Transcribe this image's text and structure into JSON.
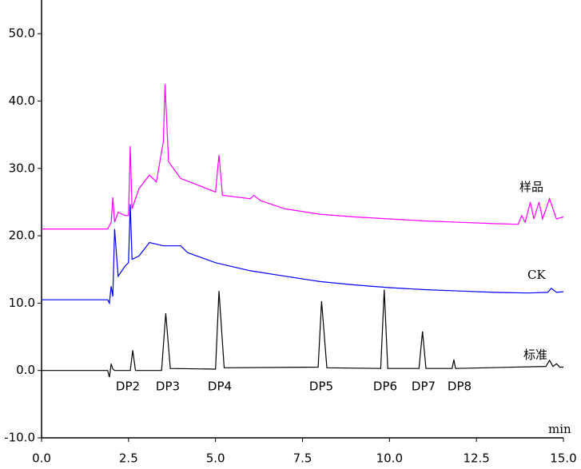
{
  "chart_data": {
    "type": "line",
    "x_label": "min",
    "xlim": [
      0,
      15
    ],
    "xticks": [
      {
        "value": 0,
        "label": "0.0"
      },
      {
        "value": 2.5,
        "label": "2.5"
      },
      {
        "value": 5,
        "label": "5.0"
      },
      {
        "value": 7.5,
        "label": "7.5"
      },
      {
        "value": 10,
        "label": "10.0"
      },
      {
        "value": 12.5,
        "label": "12.5"
      },
      {
        "value": 15,
        "label": "15.0"
      }
    ],
    "ylim": [
      -10,
      55
    ],
    "yticks": [
      {
        "value": -10,
        "label": "-10.0"
      },
      {
        "value": 0,
        "label": "0.0"
      },
      {
        "value": 10,
        "label": "10.0"
      },
      {
        "value": 20,
        "label": "20.0"
      },
      {
        "value": 30,
        "label": "30.0"
      },
      {
        "value": 40,
        "label": "40.0"
      },
      {
        "value": 50,
        "label": "50.0"
      }
    ],
    "grid": false,
    "annotations": [
      "DP2",
      "DP3",
      "DP4",
      "DP5",
      "DP6",
      "DP7",
      "DP8"
    ],
    "series": [
      {
        "name": "样品",
        "color": "#ff00ff",
        "x": [
          0,
          1.9,
          2.0,
          2.05,
          2.1,
          2.2,
          2.4,
          2.5,
          2.55,
          2.6,
          2.8,
          3.1,
          3.3,
          3.5,
          3.55,
          3.65,
          4.0,
          4.5,
          5.0,
          5.1,
          5.2,
          6.0,
          6.1,
          6.3,
          7,
          8,
          9,
          10,
          11,
          12,
          13,
          13.7,
          13.8,
          13.9,
          14.05,
          14.15,
          14.3,
          14.4,
          14.6,
          14.8,
          15
        ],
        "values": [
          21,
          21,
          22,
          25.7,
          22,
          23.5,
          23,
          23,
          33.3,
          24,
          27,
          29,
          28,
          34,
          42.5,
          31,
          28.5,
          27.5,
          26.5,
          32,
          26,
          25.5,
          26,
          25.2,
          24,
          23.2,
          22.8,
          22.5,
          22.2,
          22,
          21.8,
          21.7,
          23,
          22,
          25,
          22.5,
          25,
          22.5,
          25.5,
          22.5,
          22.8
        ]
      },
      {
        "name": "CK",
        "color": "#0000ff",
        "x": [
          0,
          1.9,
          1.95,
          2.0,
          2.05,
          2.1,
          2.2,
          2.4,
          2.5,
          2.55,
          2.6,
          2.8,
          3.1,
          3.5,
          4.0,
          4.2,
          5,
          6,
          7,
          8,
          9,
          10,
          11,
          12,
          13,
          14,
          14.55,
          14.65,
          14.8,
          15
        ],
        "values": [
          10.5,
          10.5,
          10,
          12.5,
          11,
          21,
          14,
          15.5,
          16,
          24.7,
          16.5,
          17,
          19,
          18.5,
          18.5,
          17.5,
          16,
          14.8,
          14,
          13.2,
          12.7,
          12.3,
          12,
          11.8,
          11.6,
          11.5,
          11.6,
          12.2,
          11.6,
          11.7
        ]
      },
      {
        "name": "标准",
        "color": "#000000",
        "x": [
          0,
          1.9,
          1.95,
          2.0,
          2.05,
          2.1,
          2.55,
          2.62,
          2.7,
          3.45,
          3.57,
          3.7,
          5.0,
          5.1,
          5.25,
          7.95,
          8.05,
          8.2,
          9.75,
          9.85,
          9.95,
          10.85,
          10.95,
          11.05,
          11.8,
          11.85,
          11.9,
          14.5,
          14.6,
          14.7,
          14.8,
          14.9,
          15
        ],
        "values": [
          0,
          0,
          -1,
          1,
          0.2,
          0,
          0,
          3,
          0,
          0,
          8.5,
          0.3,
          0.2,
          11.8,
          0.4,
          0.5,
          10.3,
          0.4,
          0.3,
          12,
          0.3,
          0.3,
          5.8,
          0.3,
          0.3,
          1.6,
          0.3,
          0.6,
          1.5,
          0.6,
          1,
          0.5,
          0.5
        ]
      }
    ]
  }
}
